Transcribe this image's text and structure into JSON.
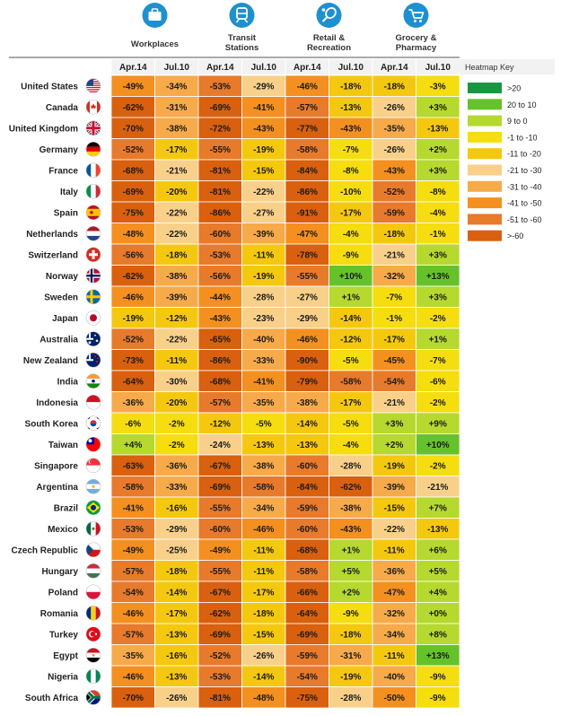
{
  "chart_data": {
    "type": "heatmap",
    "title": "",
    "categories_header": [
      {
        "icon": "briefcase-icon",
        "label": "Workplaces"
      },
      {
        "icon": "train-icon",
        "label": "Transit\nStations"
      },
      {
        "icon": "tennis-racket-icon",
        "label": "Retail &\nRecreation"
      },
      {
        "icon": "shopping-cart-icon",
        "label": "Grocery &\nPharmacy"
      }
    ],
    "date_columns": [
      "Apr.14",
      "Jul.10"
    ],
    "key_title": "Heatmap Key",
    "key": [
      {
        "label": ">20",
        "color": "#1a9641"
      },
      {
        "label": "20 to 10",
        "color": "#66c22b"
      },
      {
        "label": "9 to 0",
        "color": "#b5d92e"
      },
      {
        "label": "-1 to -10",
        "color": "#f5dd10"
      },
      {
        "label": "-11 to -20",
        "color": "#f5c810"
      },
      {
        "label": "-21 to -30",
        "color": "#f9d08a"
      },
      {
        "label": "-31 to -40",
        "color": "#f7aa4a"
      },
      {
        "label": "-41 to -50",
        "color": "#f49020"
      },
      {
        "label": "-51 to -60",
        "color": "#e87a2c"
      },
      {
        "label": ">-60",
        "color": "#d9600e"
      }
    ],
    "rows": [
      {
        "country": "United States",
        "flag": "us-flag-icon",
        "values": [
          "-49%",
          "-34%",
          "-53%",
          "-29%",
          "-46%",
          "-18%",
          "-18%",
          "-3%"
        ]
      },
      {
        "country": "Canada",
        "flag": "canada-flag-icon",
        "values": [
          "-62%",
          "-31%",
          "-69%",
          "-41%",
          "-57%",
          "-13%",
          "-26%",
          "+3%"
        ]
      },
      {
        "country": "United Kingdom",
        "flag": "uk-flag-icon",
        "values": [
          "-70%",
          "-38%",
          "-72%",
          "-43%",
          "-77%",
          "-43%",
          "-35%",
          "-13%"
        ]
      },
      {
        "country": "Germany",
        "flag": "germany-flag-icon",
        "values": [
          "-52%",
          "-17%",
          "-55%",
          "-19%",
          "-58%",
          "-7%",
          "-26%",
          "+2%"
        ]
      },
      {
        "country": "France",
        "flag": "france-flag-icon",
        "values": [
          "-68%",
          "-21%",
          "-81%",
          "-15%",
          "-84%",
          "-8%",
          "-43%",
          "+3%"
        ]
      },
      {
        "country": "Italy",
        "flag": "italy-flag-icon",
        "values": [
          "-69%",
          "-20%",
          "-81%",
          "-22%",
          "-86%",
          "-10%",
          "-52%",
          "-8%"
        ]
      },
      {
        "country": "Spain",
        "flag": "spain-flag-icon",
        "values": [
          "-75%",
          "-22%",
          "-86%",
          "-27%",
          "-91%",
          "-17%",
          "-59%",
          "-4%"
        ]
      },
      {
        "country": "Netherlands",
        "flag": "netherlands-flag-icon",
        "values": [
          "-48%",
          "-22%",
          "-60%",
          "-39%",
          "-47%",
          "-4%",
          "-18%",
          "-1%"
        ]
      },
      {
        "country": "Switzerland",
        "flag": "switzerland-flag-icon",
        "values": [
          "-56%",
          "-18%",
          "-53%",
          "-11%",
          "-78%",
          "-9%",
          "-21%",
          "+3%"
        ]
      },
      {
        "country": "Norway",
        "flag": "norway-flag-icon",
        "values": [
          "-62%",
          "-38%",
          "-56%",
          "-19%",
          "-55%",
          "+10%",
          "-32%",
          "+13%"
        ]
      },
      {
        "country": "Sweden",
        "flag": "sweden-flag-icon",
        "values": [
          "-46%",
          "-39%",
          "-44%",
          "-28%",
          "-27%",
          "+1%",
          "-7%",
          "+3%"
        ]
      },
      {
        "country": "Japan",
        "flag": "japan-flag-icon",
        "values": [
          "-19%",
          "-12%",
          "-43%",
          "-23%",
          "-29%",
          "-14%",
          "-1%",
          "-2%"
        ]
      },
      {
        "country": "Australia",
        "flag": "australia-flag-icon",
        "values": [
          "-52%",
          "-22%",
          "-65%",
          "-40%",
          "-46%",
          "-12%",
          "-17%",
          "+1%"
        ]
      },
      {
        "country": "New Zealand",
        "flag": "new-zealand-flag-icon",
        "values": [
          "-73%",
          "-11%",
          "-86%",
          "-33%",
          "-90%",
          "-5%",
          "-45%",
          "-7%"
        ]
      },
      {
        "country": "India",
        "flag": "india-flag-icon",
        "values": [
          "-64%",
          "-30%",
          "-68%",
          "-41%",
          "-79%",
          "-58%",
          "-54%",
          "-6%"
        ]
      },
      {
        "country": "Indonesia",
        "flag": "indonesia-flag-icon",
        "values": [
          "-36%",
          "-20%",
          "-57%",
          "-35%",
          "-38%",
          "-17%",
          "-21%",
          "-2%"
        ]
      },
      {
        "country": "South Korea",
        "flag": "south-korea-flag-icon",
        "values": [
          "-6%",
          "-2%",
          "-12%",
          "-5%",
          "-14%",
          "-5%",
          "+3%",
          "+9%"
        ]
      },
      {
        "country": "Taiwan",
        "flag": "taiwan-flag-icon",
        "values": [
          "+4%",
          "-2%",
          "-24%",
          "-13%",
          "-13%",
          "-4%",
          "+2%",
          "+10%"
        ]
      },
      {
        "country": "Singapore",
        "flag": "singapore-flag-icon",
        "values": [
          "-63%",
          "-36%",
          "-67%",
          "-38%",
          "-60%",
          "-28%",
          "-19%",
          "-2%"
        ]
      },
      {
        "country": "Argentina",
        "flag": "argentina-flag-icon",
        "values": [
          "-58%",
          "-33%",
          "-69%",
          "-58%",
          "-84%",
          "-62%",
          "-39%",
          "-21%"
        ]
      },
      {
        "country": "Brazil",
        "flag": "brazil-flag-icon",
        "values": [
          "-41%",
          "-16%",
          "-55%",
          "-34%",
          "-59%",
          "-38%",
          "-15%",
          "+7%"
        ]
      },
      {
        "country": "Mexico",
        "flag": "mexico-flag-icon",
        "values": [
          "-53%",
          "-29%",
          "-60%",
          "-46%",
          "-60%",
          "-43%",
          "-22%",
          "-13%"
        ]
      },
      {
        "country": "Czech Republic",
        "flag": "czech-flag-icon",
        "values": [
          "-49%",
          "-25%",
          "-49%",
          "-11%",
          "-68%",
          "+1%",
          "-11%",
          "+6%"
        ]
      },
      {
        "country": "Hungary",
        "flag": "hungary-flag-icon",
        "values": [
          "-57%",
          "-18%",
          "-55%",
          "-11%",
          "-58%",
          "+5%",
          "-36%",
          "+5%"
        ]
      },
      {
        "country": "Poland",
        "flag": "poland-flag-icon",
        "values": [
          "-54%",
          "-14%",
          "-67%",
          "-17%",
          "-66%",
          "+2%",
          "-47%",
          "+4%"
        ]
      },
      {
        "country": "Romania",
        "flag": "romania-flag-icon",
        "values": [
          "-46%",
          "-17%",
          "-62%",
          "-18%",
          "-64%",
          "-9%",
          "-32%",
          "+0%"
        ]
      },
      {
        "country": "Turkey",
        "flag": "turkey-flag-icon",
        "values": [
          "-57%",
          "-13%",
          "-69%",
          "-15%",
          "-69%",
          "-18%",
          "-34%",
          "+8%"
        ]
      },
      {
        "country": "Egypt",
        "flag": "egypt-flag-icon",
        "values": [
          "-35%",
          "-16%",
          "-52%",
          "-26%",
          "-59%",
          "-31%",
          "-11%",
          "+13%"
        ]
      },
      {
        "country": "Nigeria",
        "flag": "nigeria-flag-icon",
        "values": [
          "-46%",
          "-13%",
          "-53%",
          "-14%",
          "-54%",
          "-19%",
          "-40%",
          "-9%"
        ]
      },
      {
        "country": "South Africa",
        "flag": "south-africa-flag-icon",
        "values": [
          "-70%",
          "-26%",
          "-81%",
          "-48%",
          "-75%",
          "-28%",
          "-50%",
          "-9%"
        ]
      }
    ]
  }
}
